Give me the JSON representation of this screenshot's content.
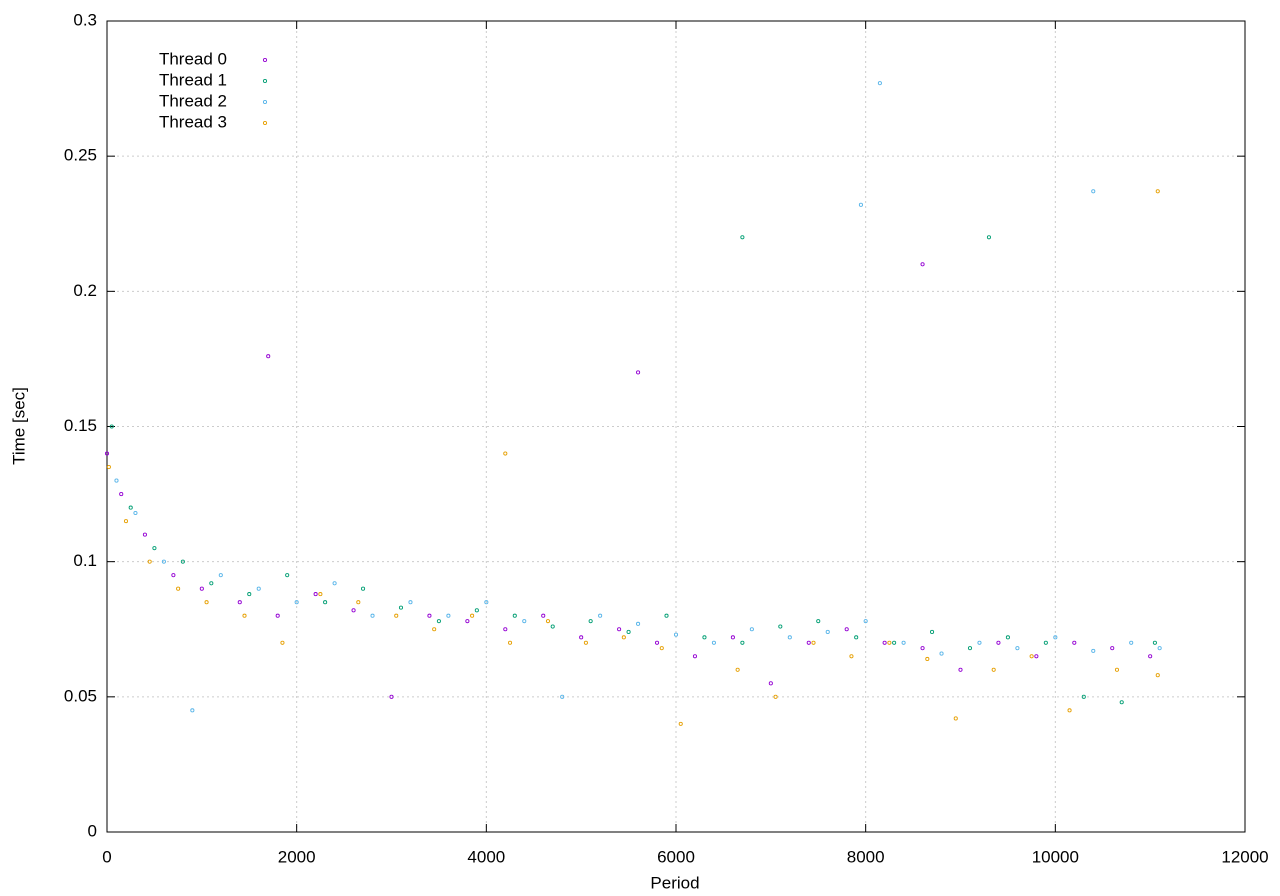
{
  "chart_data": {
    "type": "scatter",
    "x_label": "Period",
    "y_label": "Time [sec]",
    "xlim": [
      0,
      12000
    ],
    "ylim": [
      0,
      0.3
    ],
    "xticks": [
      0,
      2000,
      4000,
      6000,
      8000,
      10000,
      12000
    ],
    "yticks": [
      0,
      0.05,
      0.1,
      0.15,
      0.2,
      0.25,
      0.3
    ],
    "grid": true,
    "legend": "top-left",
    "series": [
      {
        "name": "Thread 0",
        "color": "#9400d3",
        "x": [
          0,
          150,
          400,
          700,
          1000,
          1400,
          1800,
          2200,
          2600,
          3000,
          3400,
          3800,
          4200,
          4600,
          5000,
          5400,
          5800,
          6200,
          6600,
          7000,
          7400,
          7800,
          8200,
          8600,
          9000,
          9400,
          9800,
          10200,
          10600,
          11000,
          1700,
          5600,
          8600
        ],
        "values": [
          0.14,
          0.125,
          0.11,
          0.095,
          0.09,
          0.085,
          0.08,
          0.088,
          0.082,
          0.05,
          0.08,
          0.078,
          0.075,
          0.08,
          0.072,
          0.075,
          0.07,
          0.065,
          0.072,
          0.055,
          0.07,
          0.075,
          0.07,
          0.068,
          0.06,
          0.07,
          0.065,
          0.07,
          0.068,
          0.065,
          0.176,
          0.17,
          0.21
        ]
      },
      {
        "name": "Thread 1",
        "color": "#009e73",
        "x": [
          50,
          250,
          500,
          800,
          1100,
          1500,
          1900,
          2300,
          2700,
          3100,
          3500,
          3900,
          4300,
          4700,
          5100,
          5500,
          5900,
          6300,
          6700,
          7100,
          7500,
          7900,
          8300,
          8700,
          9100,
          9500,
          9900,
          10300,
          10700,
          11050,
          6700,
          9300
        ],
        "values": [
          0.15,
          0.12,
          0.105,
          0.1,
          0.092,
          0.088,
          0.095,
          0.085,
          0.09,
          0.083,
          0.078,
          0.082,
          0.08,
          0.076,
          0.078,
          0.074,
          0.08,
          0.072,
          0.07,
          0.076,
          0.078,
          0.072,
          0.07,
          0.074,
          0.068,
          0.072,
          0.07,
          0.05,
          0.048,
          0.07,
          0.22,
          0.22
        ]
      },
      {
        "name": "Thread 2",
        "color": "#56b4e9",
        "x": [
          100,
          300,
          600,
          900,
          1200,
          1600,
          2000,
          2400,
          2800,
          3200,
          3600,
          4000,
          4400,
          4800,
          5200,
          5600,
          6000,
          6400,
          6800,
          7200,
          7600,
          8000,
          8400,
          8800,
          9200,
          9600,
          10000,
          10400,
          10800,
          11100,
          8150,
          10400,
          7950
        ],
        "values": [
          0.13,
          0.118,
          0.1,
          0.045,
          0.095,
          0.09,
          0.085,
          0.092,
          0.08,
          0.085,
          0.08,
          0.085,
          0.078,
          0.05,
          0.08,
          0.077,
          0.073,
          0.07,
          0.075,
          0.072,
          0.074,
          0.078,
          0.07,
          0.066,
          0.07,
          0.068,
          0.072,
          0.067,
          0.07,
          0.068,
          0.277,
          0.237,
          0.232
        ]
      },
      {
        "name": "Thread 3",
        "color": "#e69f00",
        "x": [
          20,
          200,
          450,
          750,
          1050,
          1450,
          1850,
          2250,
          2650,
          3050,
          3450,
          3850,
          4250,
          4650,
          5050,
          5450,
          5850,
          6050,
          6650,
          7050,
          7450,
          7850,
          8250,
          8650,
          8950,
          9350,
          9750,
          10150,
          10650,
          11080,
          11080,
          4200
        ],
        "values": [
          0.135,
          0.115,
          0.1,
          0.09,
          0.085,
          0.08,
          0.07,
          0.088,
          0.085,
          0.08,
          0.075,
          0.08,
          0.07,
          0.078,
          0.07,
          0.072,
          0.068,
          0.04,
          0.06,
          0.05,
          0.07,
          0.065,
          0.07,
          0.064,
          0.042,
          0.06,
          0.065,
          0.045,
          0.06,
          0.058,
          0.237,
          0.14
        ]
      }
    ]
  }
}
